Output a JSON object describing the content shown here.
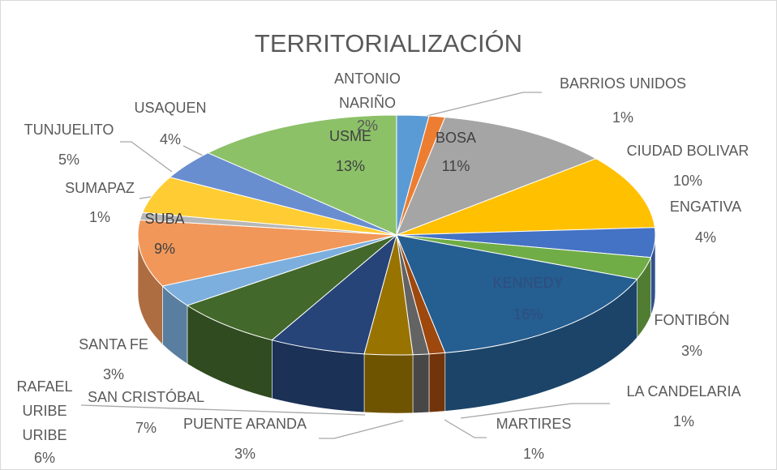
{
  "chart_data": {
    "type": "pie",
    "title": "TERRITORIALIZACIÓN",
    "categories": [
      "ANTONIO NARIÑO",
      "BARRIOS UNIDOS",
      "BOSA",
      "CIUDAD BOLIVAR",
      "ENGATIVA",
      "FONTIBÓN",
      "KENNEDY",
      "LA CANDELARIA",
      "MARTIRES",
      "PUENTE ARANDA",
      "RAFAEL URIBE URIBE",
      "SAN CRISTÓBAL",
      "SANTA FE",
      "SUBA",
      "SUMAPAZ",
      "TUNJUELITO",
      "USAQUEN",
      "USME"
    ],
    "values": [
      2,
      1,
      11,
      10,
      4,
      3,
      16,
      1,
      1,
      3,
      6,
      7,
      3,
      9,
      1,
      5,
      4,
      13
    ],
    "value_labels": [
      "2%",
      "1%",
      "11%",
      "10%",
      "4%",
      "3%",
      "16%",
      "1%",
      "1%",
      "3%",
      "6%",
      "7%",
      "3%",
      "9%",
      "1%",
      "5%",
      "4%",
      "13%"
    ],
    "colors": [
      "#5b9bd5",
      "#ed7d31",
      "#a5a5a5",
      "#ffc000",
      "#4472c4",
      "#70ad47",
      "#255e91",
      "#9e480e",
      "#636363",
      "#997300",
      "#264478",
      "#43682b",
      "#7cafdd",
      "#f1975a",
      "#b7b7b7",
      "#ffcd33",
      "#698ed0",
      "#8cc168"
    ]
  }
}
